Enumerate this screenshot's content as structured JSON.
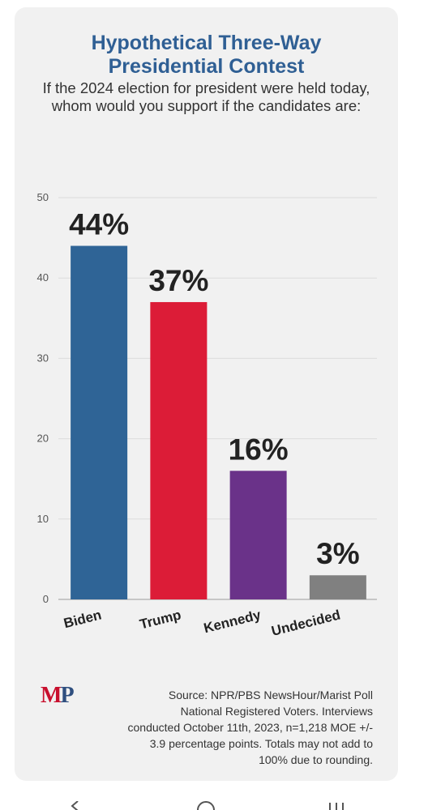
{
  "title_lines": [
    "Hypothetical Three-Way",
    "Presidential Contest"
  ],
  "subtitle": "If the 2024 election for president were held today, whom would you support if the candidates are:",
  "chart_data": {
    "type": "bar",
    "categories": [
      "Biden",
      "Trump",
      "Kennedy",
      "Undecided"
    ],
    "values": [
      44,
      37,
      16,
      3
    ],
    "data_labels": [
      "44%",
      "37%",
      "16%",
      "3%"
    ],
    "colors": [
      "#2f6496",
      "#dc1c37",
      "#6a3289",
      "#808080"
    ],
    "ylim": [
      0,
      50
    ],
    "yticks": [
      0,
      10,
      20,
      30,
      40,
      50
    ],
    "grid": true,
    "title": "Hypothetical Three-Way Presidential Contest",
    "xlabel": "",
    "ylabel": ""
  },
  "source_lines": [
    "Source: NPR/PBS NewsHour/Marist Poll",
    "National Registered Voters. Interviews",
    "conducted October 11th, 2023, n=1,218 MOE +/-",
    "3.9 percentage points. Totals may not add to",
    "100% due to rounding."
  ],
  "logo": {
    "m": "M",
    "p": "P"
  },
  "nav_icons": [
    "back-icon",
    "home-icon",
    "recents-icon"
  ]
}
